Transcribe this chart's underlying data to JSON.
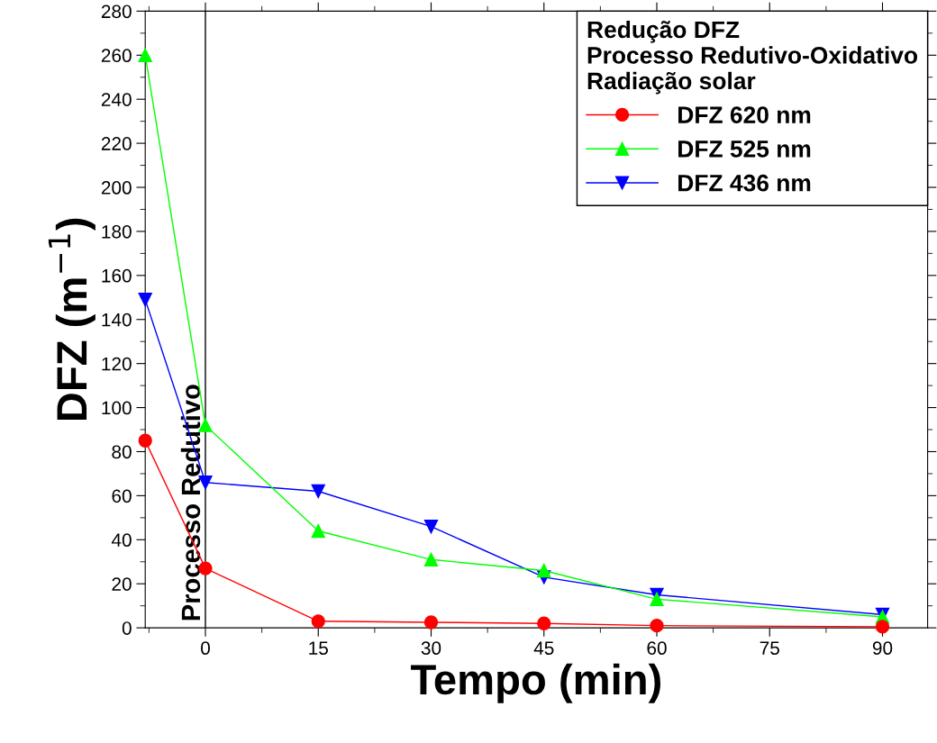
{
  "chart_data": {
    "type": "line",
    "xlabel": "Tempo (min)",
    "ylabel": "DFZ (m$^{−1}$)",
    "legend_title": "Redução DFZ\nProcesso Redutivo-Oxidativo\nRadiação solar",
    "x": [
      -8,
      0,
      15,
      30,
      45,
      60,
      90
    ],
    "series": [
      {
        "name": "DFZ 620 nm",
        "color": "#ff0000",
        "marker": "circle",
        "values": [
          85,
          27,
          3,
          2.5,
          2,
          1,
          0.5
        ]
      },
      {
        "name": "DFZ 525 nm",
        "color": "#00ff00",
        "marker": "triangle",
        "values": [
          260,
          92,
          44,
          31,
          26,
          13,
          5
        ]
      },
      {
        "name": "DFZ 436 nm",
        "color": "#0000ff",
        "marker": "triangle_down",
        "values": [
          149,
          66,
          62,
          46,
          23,
          15,
          6
        ]
      }
    ],
    "xlim": [
      -8,
      96
    ],
    "xticks": [
      0,
      15,
      30,
      45,
      60,
      75,
      90
    ],
    "ylim": [
      0,
      280
    ],
    "yticks": [
      0,
      20,
      40,
      60,
      80,
      100,
      120,
      140,
      160,
      180,
      200,
      220,
      240,
      260,
      280
    ],
    "ref_lines": [
      {
        "axis": "x",
        "value": 0,
        "label": "Processo Redutivo",
        "color": "#000000"
      }
    ],
    "legend": "top right",
    "grid": false,
    "line_style": "solid"
  }
}
